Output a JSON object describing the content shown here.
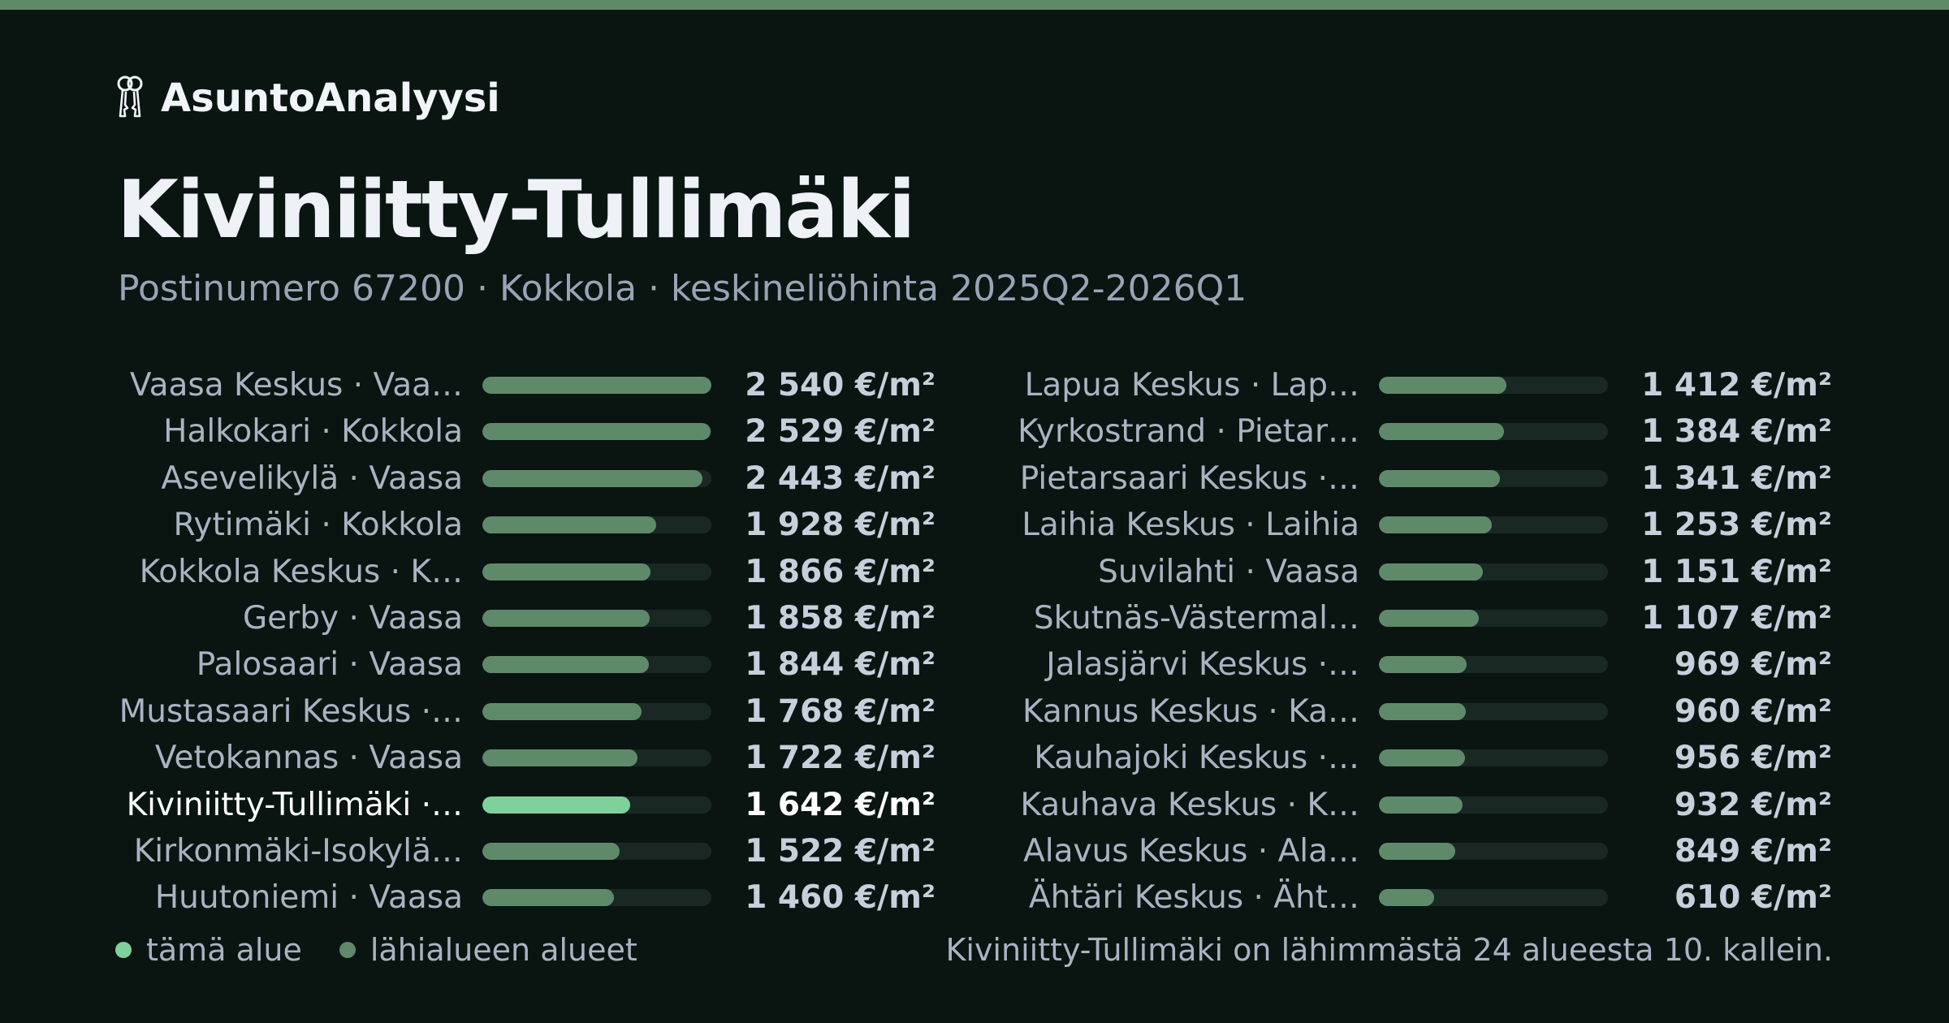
{
  "brand": {
    "name": "AsuntoAnalyysi",
    "icon": "keys-icon"
  },
  "title": "Kiviniitty-Tullimäki",
  "subtitle": "Postinumero 67200 · Kokkola · keskineliöhinta 2025Q2-2026Q1",
  "colors": {
    "background": "#0a1512",
    "accent": "#5f8a6a",
    "highlight": "#7fd19c",
    "track": "#1a2824"
  },
  "chart_data": {
    "type": "bar",
    "orientation": "horizontal",
    "unit": "€/m²",
    "xlim": [
      0,
      2540
    ],
    "left_column": [
      {
        "label": "Vaasa Keskus · Vaa…",
        "value": 2540,
        "value_label": "2 540 €/m²"
      },
      {
        "label": "Halkokari · Kokkola",
        "value": 2529,
        "value_label": "2 529 €/m²"
      },
      {
        "label": "Asevelikylä · Vaasa",
        "value": 2443,
        "value_label": "2 443 €/m²"
      },
      {
        "label": "Rytimäki · Kokkola",
        "value": 1928,
        "value_label": "1 928 €/m²"
      },
      {
        "label": "Kokkola Keskus · K…",
        "value": 1866,
        "value_label": "1 866 €/m²"
      },
      {
        "label": "Gerby · Vaasa",
        "value": 1858,
        "value_label": "1 858 €/m²"
      },
      {
        "label": "Palosaari · Vaasa",
        "value": 1844,
        "value_label": "1 844 €/m²"
      },
      {
        "label": "Mustasaari Keskus ·…",
        "value": 1768,
        "value_label": "1 768 €/m²"
      },
      {
        "label": "Vetokannas · Vaasa",
        "value": 1722,
        "value_label": "1 722 €/m²"
      },
      {
        "label": "Kiviniitty-Tullimäki ·…",
        "value": 1642,
        "value_label": "1 642 €/m²",
        "highlight": true
      },
      {
        "label": "Kirkonmäki-Isokylä…",
        "value": 1522,
        "value_label": "1 522 €/m²"
      },
      {
        "label": "Huutoniemi · Vaasa",
        "value": 1460,
        "value_label": "1 460 €/m²"
      }
    ],
    "right_column": [
      {
        "label": "Lapua Keskus · Lap…",
        "value": 1412,
        "value_label": "1 412 €/m²"
      },
      {
        "label": "Kyrkostrand · Pietar…",
        "value": 1384,
        "value_label": "1 384 €/m²"
      },
      {
        "label": "Pietarsaari Keskus ·…",
        "value": 1341,
        "value_label": "1 341 €/m²"
      },
      {
        "label": "Laihia Keskus · Laihia",
        "value": 1253,
        "value_label": "1 253 €/m²"
      },
      {
        "label": "Suvilahti · Vaasa",
        "value": 1151,
        "value_label": "1 151 €/m²"
      },
      {
        "label": "Skutnäs-Västermal…",
        "value": 1107,
        "value_label": "1 107 €/m²"
      },
      {
        "label": "Jalasjärvi Keskus ·…",
        "value": 969,
        "value_label": "969 €/m²"
      },
      {
        "label": "Kannus Keskus · Ka…",
        "value": 960,
        "value_label": "960 €/m²"
      },
      {
        "label": "Kauhajoki Keskus ·…",
        "value": 956,
        "value_label": "956 €/m²"
      },
      {
        "label": "Kauhava Keskus · K…",
        "value": 932,
        "value_label": "932 €/m²"
      },
      {
        "label": "Alavus Keskus · Ala…",
        "value": 849,
        "value_label": "849 €/m²"
      },
      {
        "label": "Ähtäri Keskus · Äht…",
        "value": 610,
        "value_label": "610 €/m²"
      }
    ]
  },
  "legend": {
    "this_area": "tämä alue",
    "nearby_areas": "lähialueen alueet"
  },
  "note": "Kiviniitty-Tullimäki on lähimmästä 24 alueesta 10. kallein."
}
